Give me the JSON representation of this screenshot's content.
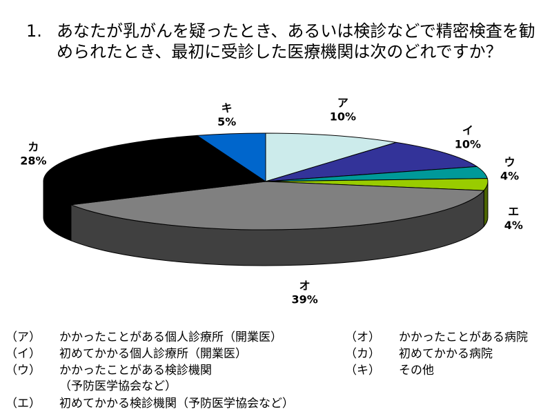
{
  "title": {
    "number": "1.",
    "text": "あなたが乳がんを疑ったとき、あるいは検診などで精密検査を勧められたとき、最初に受診した医療機関は次のどれですか？"
  },
  "chart_data": {
    "type": "pie",
    "three_d": true,
    "slices": [
      {
        "key": "ア",
        "value": 10,
        "label": "10%",
        "color": "#CCEBEB"
      },
      {
        "key": "イ",
        "value": 10,
        "label": "10%",
        "color": "#333399"
      },
      {
        "key": "ウ",
        "value": 4,
        "label": "4%",
        "color": "#009999"
      },
      {
        "key": "エ",
        "value": 4,
        "label": "4%",
        "color": "#99CC00"
      },
      {
        "key": "オ",
        "value": 39,
        "label": "39%",
        "color": "#808080"
      },
      {
        "key": "カ",
        "value": 28,
        "label": "28%",
        "color": "#000000"
      },
      {
        "key": "キ",
        "value": 5,
        "label": "5%",
        "color": "#0066CC"
      }
    ]
  },
  "legend": [
    {
      "key": "（ア）",
      "text": "かかったことがある個人診療所（開業医）"
    },
    {
      "key": "（イ）",
      "text": "初めてかかる個人診療所（開業医）"
    },
    {
      "key": "（ウ）",
      "text": "かかったことがある検診機関"
    },
    {
      "key": "",
      "text": "（予防医学協会など）"
    },
    {
      "key": "（エ）",
      "text": "初めてかかる検診機関（予防医学協会など）"
    },
    {
      "key": "（オ）",
      "text": "かかったことがある病院"
    },
    {
      "key": "（カ）",
      "text": "初めてかかる病院"
    },
    {
      "key": "（キ）",
      "text": "その他"
    }
  ]
}
